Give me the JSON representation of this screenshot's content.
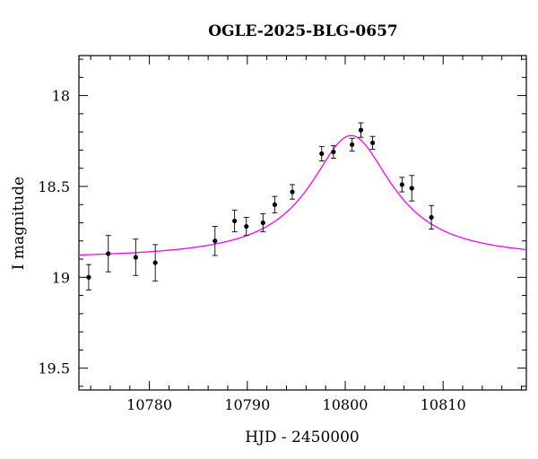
{
  "chart_data": {
    "type": "scatter",
    "title": "OGLE-2025-BLG-0657",
    "xlabel": "HJD - 2450000",
    "ylabel": "I magnitude",
    "xlim": [
      10772.8,
      10818.5
    ],
    "ylim": [
      19.62,
      17.78
    ],
    "y_inverted": true,
    "xticks": [
      10780,
      10790,
      10800,
      10810
    ],
    "yticks": [
      18,
      18.5,
      19,
      19.5
    ],
    "xtick_labels": [
      "10780",
      "10790",
      "10800",
      "10810"
    ],
    "ytick_labels": [
      "18",
      "18.5",
      "19",
      "19.5"
    ],
    "grid": false,
    "colors": {
      "model": "#ff00ff",
      "points": "#000000"
    },
    "model": {
      "name": "",
      "baseline": 18.9,
      "peak_mag": 18.22,
      "t0": 10800.6,
      "tE": 4.4
    },
    "series": [
      {
        "name": "",
        "x": [
          10773.8,
          10775.8,
          10778.6,
          10780.6,
          10786.7,
          10788.7,
          10789.9,
          10791.6,
          10792.8,
          10794.6,
          10797.6,
          10798.8,
          10800.7,
          10801.6,
          10802.8,
          10805.8,
          10806.8,
          10808.8
        ],
        "y": [
          19.0,
          18.87,
          18.89,
          18.92,
          18.8,
          18.69,
          18.72,
          18.7,
          18.6,
          18.53,
          18.32,
          18.31,
          18.27,
          18.19,
          18.26,
          18.49,
          18.51,
          18.67
        ],
        "err": [
          0.07,
          0.1,
          0.1,
          0.1,
          0.08,
          0.06,
          0.05,
          0.05,
          0.045,
          0.04,
          0.04,
          0.035,
          0.035,
          0.04,
          0.035,
          0.04,
          0.07,
          0.065
        ]
      }
    ]
  }
}
